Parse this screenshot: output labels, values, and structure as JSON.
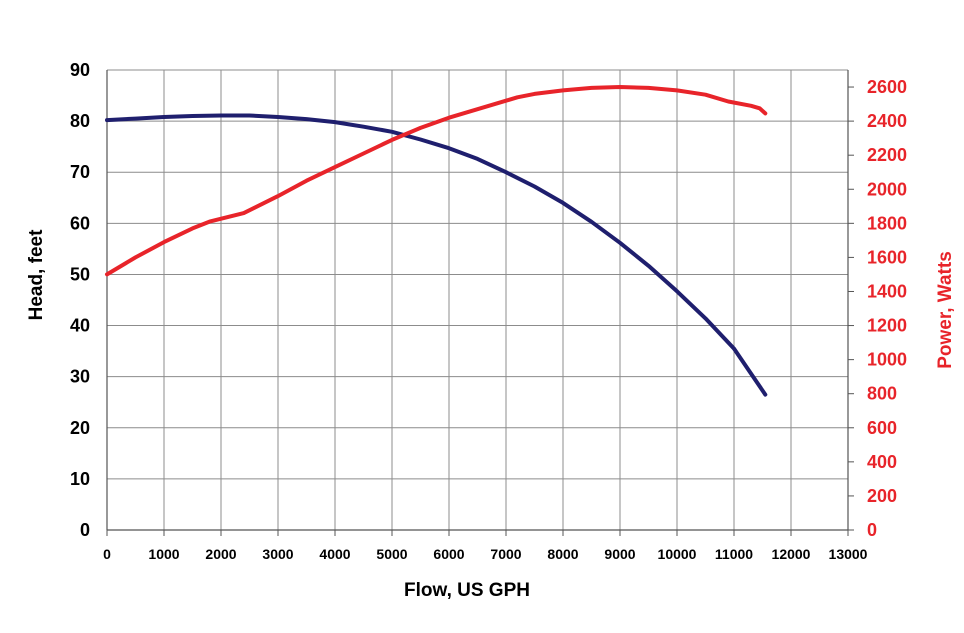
{
  "chart_data": {
    "type": "line",
    "title": "",
    "xlabel": "Flow, US GPH",
    "ylabel": "Head, feet",
    "y2label": "Power, Watts",
    "xlim": [
      0,
      13000
    ],
    "ylim": [
      0,
      90
    ],
    "y2lim": [
      0,
      2700
    ],
    "grid": true,
    "x_ticks": [
      "0",
      "1000",
      "2000",
      "3000",
      "4000",
      "5000",
      "6000",
      "7000",
      "8000",
      "9000",
      "10000",
      "11000",
      "12000",
      "13000"
    ],
    "y_ticks": [
      "0",
      "10",
      "20",
      "30",
      "40",
      "50",
      "60",
      "70",
      "80",
      "90"
    ],
    "y2_ticks": [
      "0",
      "200",
      "400",
      "600",
      "800",
      "1000",
      "1200",
      "1400",
      "1600",
      "1800",
      "2000",
      "2200",
      "2400",
      "2600"
    ],
    "series": [
      {
        "name": "Head, feet",
        "axis": "left",
        "color": "#1f1f6e",
        "x": [
          0,
          500,
          1000,
          1500,
          2000,
          2500,
          3000,
          3500,
          4000,
          4500,
          5000,
          5500,
          6000,
          6500,
          7000,
          7500,
          8000,
          8500,
          9000,
          9500,
          10000,
          10500,
          11000,
          11550
        ],
        "y": [
          80.2,
          80.5,
          80.8,
          81.0,
          81.1,
          81.1,
          80.8,
          80.4,
          79.8,
          78.9,
          77.9,
          76.4,
          74.7,
          72.6,
          70.0,
          67.2,
          64.0,
          60.3,
          56.2,
          51.7,
          46.7,
          41.4,
          35.5,
          26.5
        ]
      },
      {
        "name": "Power, Watts",
        "axis": "right",
        "color": "#e8242a",
        "x": [
          0,
          500,
          1000,
          1500,
          1800,
          2400,
          3000,
          3500,
          4000,
          4500,
          5000,
          5500,
          6000,
          6500,
          7000,
          7200,
          7500,
          8000,
          8500,
          9000,
          9500,
          10000,
          10500,
          10900,
          11300,
          11450,
          11550
        ],
        "y": [
          1500,
          1600,
          1690,
          1770,
          1810,
          1860,
          1960,
          2050,
          2130,
          2210,
          2290,
          2360,
          2420,
          2470,
          2520,
          2540,
          2560,
          2580,
          2595,
          2600,
          2595,
          2580,
          2555,
          2515,
          2490,
          2475,
          2445
        ]
      }
    ]
  }
}
